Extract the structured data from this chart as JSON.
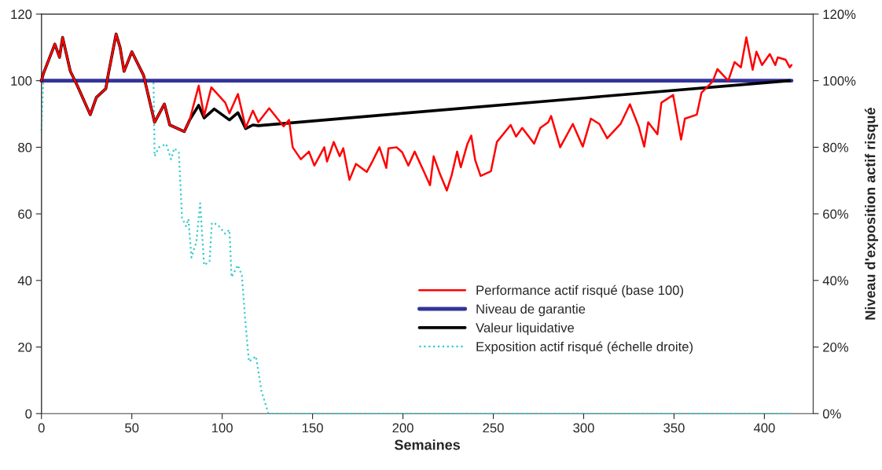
{
  "chart_data": {
    "type": "line",
    "xlabel": "Semaines",
    "y2label": "Niveau d'exposition actif risqué",
    "xlim": [
      0,
      427
    ],
    "xticks": [
      0,
      50,
      100,
      150,
      200,
      250,
      300,
      350,
      400
    ],
    "ylim": [
      0,
      120
    ],
    "yticks": [
      0,
      20,
      40,
      60,
      80,
      100,
      120
    ],
    "y2lim": [
      0,
      120
    ],
    "y2ticks": [
      {
        "value": 0,
        "label": "0%"
      },
      {
        "value": 20,
        "label": "20%"
      },
      {
        "value": 40,
        "label": "40%"
      },
      {
        "value": 60,
        "label": "60%"
      },
      {
        "value": 80,
        "label": "80%"
      },
      {
        "value": 100,
        "label": "100%"
      },
      {
        "value": 120,
        "label": "120%"
      }
    ],
    "grid": false,
    "legend": "bottom right",
    "series": [
      {
        "name": "Performance actif risqué (base 100)",
        "color": "#ff0000",
        "line_style": "solid",
        "x": [
          0,
          1,
          7.4,
          10,
          11.7,
          16,
          19.6,
          27,
          30.4,
          35.6,
          37,
          41.3,
          43.5,
          45.7,
          50,
          56.5,
          62.6,
          68,
          71,
          79,
          82,
          87,
          90,
          94,
          101.7,
          104,
          108.7,
          113,
          117,
          120,
          126,
          134,
          137,
          139,
          143.5,
          148,
          151,
          156.5,
          158,
          161.7,
          165,
          167,
          170.4,
          174,
          180,
          182.6,
          187,
          190.8,
          192,
          196.5,
          199.6,
          203,
          206.5,
          211.7,
          215,
          217,
          220.4,
          224.3,
          227,
          230,
          232,
          235.6,
          237.8,
          240,
          243,
          248.7,
          252,
          259.6,
          262.6,
          266,
          272.6,
          276,
          280.4,
          282,
          287,
          294,
          299.5,
          304,
          308.7,
          313,
          320.4,
          325.6,
          330.4,
          333.5,
          335.7,
          340.8,
          343,
          349.5,
          353.9,
          356,
          362.6,
          365.2,
          371.3,
          374,
          380,
          383.5,
          387,
          390,
          393.5,
          395.6,
          398.7,
          403,
          406,
          407.4,
          411.7,
          414,
          415
        ],
        "values": [
          100,
          102,
          111,
          107,
          113,
          102.8,
          98.8,
          89.8,
          95,
          97.6,
          102,
          114,
          110,
          102.8,
          108.7,
          101.6,
          87.5,
          93,
          86.7,
          84.7,
          88.2,
          98.5,
          89.4,
          98,
          93.4,
          90.2,
          96,
          85.9,
          91,
          87.5,
          91.7,
          86.3,
          88.2,
          80,
          76.4,
          78.7,
          74.5,
          80,
          75.7,
          81.6,
          77.3,
          79.7,
          70.2,
          75,
          72.6,
          75.2,
          80,
          73.8,
          79.7,
          80,
          78.5,
          74.5,
          78.7,
          72.6,
          68.6,
          77.3,
          72.1,
          67,
          71.7,
          78.7,
          74,
          80.9,
          83.5,
          76.1,
          71.4,
          72.8,
          81.6,
          86.7,
          83.2,
          85.8,
          81.1,
          85.8,
          87.5,
          89.4,
          80,
          87,
          80.2,
          88.6,
          87,
          82.7,
          87,
          92.9,
          86.3,
          80.2,
          87.5,
          83.9,
          93.4,
          95.7,
          82.3,
          88.6,
          89.8,
          96.4,
          99.7,
          103.5,
          100,
          105.6,
          104,
          113,
          103.3,
          108.7,
          104.7,
          108,
          104.7,
          107,
          106.3,
          104,
          104.7
        ]
      },
      {
        "name": "Niveau de garantie",
        "color": "#333399",
        "line_style": "solid",
        "x": [
          0,
          415
        ],
        "values": [
          100,
          100
        ]
      },
      {
        "name": "Valeur liquidative",
        "color": "#000000",
        "line_style": "solid",
        "x": [
          0,
          1,
          7.4,
          10,
          11.7,
          16,
          19.6,
          27,
          30.4,
          35.6,
          37,
          41.3,
          43.5,
          45.7,
          50,
          56.5,
          62.6,
          68,
          71,
          79,
          82,
          87,
          90,
          95.6,
          104,
          108.7,
          113,
          117,
          120,
          200,
          300,
          414
        ],
        "values": [
          100,
          102,
          111,
          107,
          113,
          102.8,
          98.8,
          89.8,
          95,
          97.6,
          102,
          114,
          110,
          102.8,
          108.7,
          101.6,
          87.5,
          93,
          86.7,
          84.7,
          88.2,
          92.6,
          88.8,
          91.5,
          88.2,
          90.4,
          85.6,
          86.7,
          86.5,
          90.2,
          94.8,
          100
        ]
      },
      {
        "name": "Exposition actif risqué (échelle droite)",
        "color": "#33cccc",
        "line_style": "dotted",
        "axis": "y2",
        "x": [
          0,
          1,
          2,
          62,
          62.6,
          65,
          69,
          71.7,
          73.5,
          76,
          77.8,
          80,
          81.3,
          83,
          85.7,
          87.8,
          90,
          93,
          94.3,
          97.4,
          101.7,
          104,
          105.2,
          108.7,
          110.9,
          112.6,
          114.8,
          118.7,
          121.7,
          125.6,
          415
        ],
        "values": [
          85,
          100,
          100,
          100,
          77.3,
          80,
          81,
          76.4,
          79.7,
          78.5,
          58.7,
          56.3,
          58.5,
          46.9,
          51.6,
          63.2,
          44.6,
          45.7,
          57.3,
          56.8,
          54,
          55.2,
          41,
          44.6,
          41.5,
          29,
          15.6,
          17.2,
          6.8,
          0,
          0
        ]
      }
    ]
  }
}
